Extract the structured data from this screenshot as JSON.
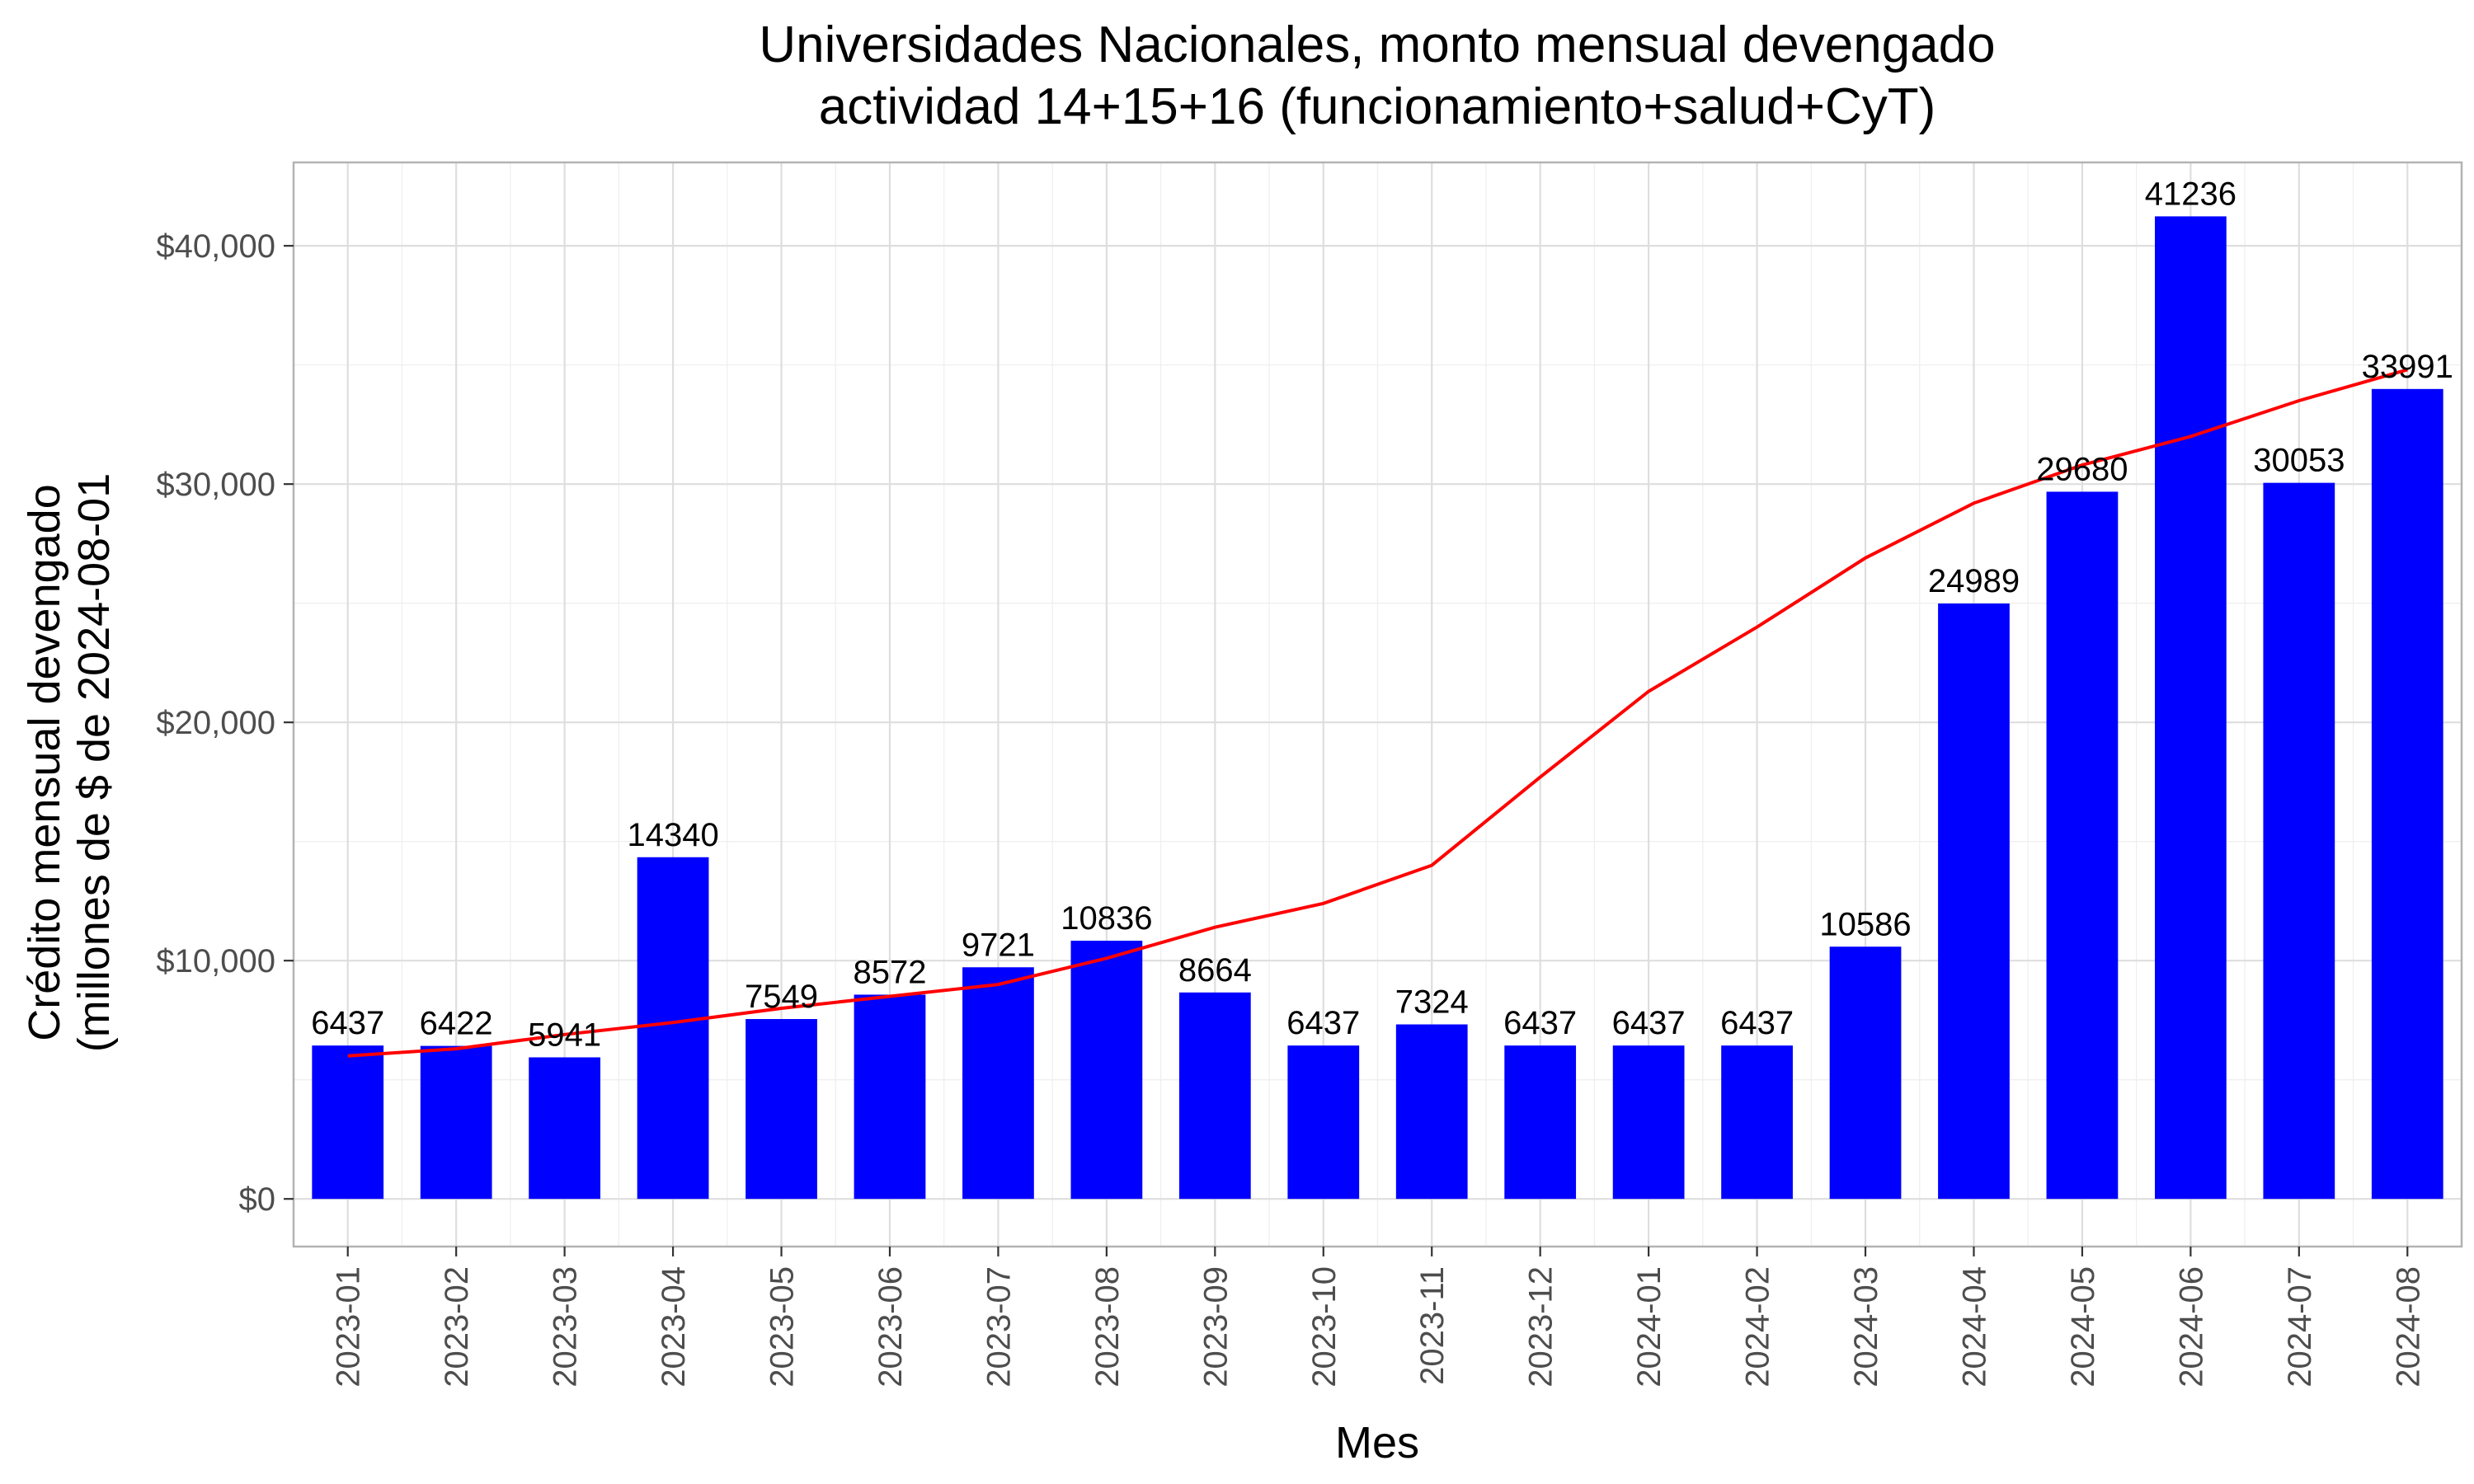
{
  "chart_data": {
    "type": "bar",
    "title_line1": "Universidades Nacionales, monto mensual devengado",
    "title_line2": "actividad 14+15+16 (funcionamiento+salud+CyT)",
    "xlabel": "Mes",
    "ylabel_line1": "Crédito mensual devengado",
    "ylabel_line2": "(millones de $ de 2024-08-01",
    "categories": [
      "2023-01",
      "2023-02",
      "2023-03",
      "2023-04",
      "2023-05",
      "2023-06",
      "2023-07",
      "2023-08",
      "2023-09",
      "2023-10",
      "2023-11",
      "2023-12",
      "2024-01",
      "2024-02",
      "2024-03",
      "2024-04",
      "2024-05",
      "2024-06",
      "2024-07",
      "2024-08"
    ],
    "values": [
      6437,
      6422,
      5941,
      14340,
      7549,
      8572,
      9721,
      10836,
      8664,
      6437,
      7324,
      6437,
      6437,
      6437,
      10586,
      24989,
      29680,
      41236,
      30053,
      33991
    ],
    "trend_values": [
      6000,
      6300,
      6900,
      7400,
      8000,
      8500,
      9000,
      10100,
      11400,
      12400,
      14000,
      17700,
      21300,
      24000,
      26900,
      29200,
      30800,
      32000,
      33500,
      34800
    ],
    "yticks": [
      0,
      10000,
      20000,
      30000,
      40000
    ],
    "ytick_labels": [
      "$0",
      "$10,000",
      "$20,000",
      "$30,000",
      "$40,000"
    ],
    "ylim": [
      -2000,
      43500
    ],
    "bar_color": "#0000FF",
    "trend_color": "#FF0000",
    "grid": true,
    "legend": false
  }
}
